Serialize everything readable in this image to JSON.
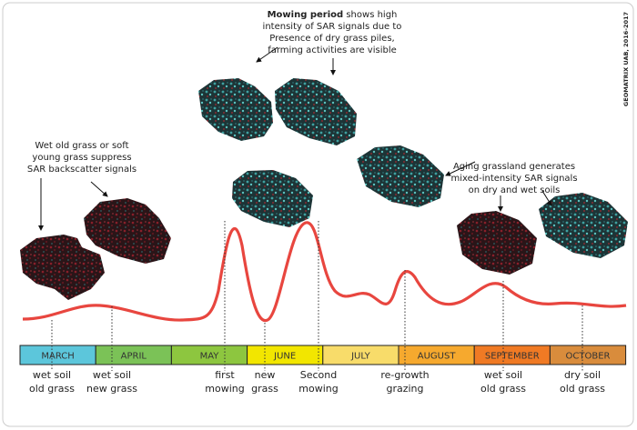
{
  "credit": "GEOMATRIX UAB, 2016-2017",
  "annotations": {
    "left": [
      "Wet old grass or soft",
      "young grass suppress",
      "SAR backscatter signals"
    ],
    "mowing": {
      "bold": "Mowing period",
      "first": " shows high",
      "lines": [
        "intensity of SAR signals due to",
        "Presence of dry grass piles,",
        "farming activities are visible"
      ]
    },
    "aging": [
      "Aging grassland generates",
      "mixed-intensity SAR signals",
      "on dry and wet soils"
    ]
  },
  "months": [
    {
      "label": "MARCH",
      "color": "#5cc6db"
    },
    {
      "label": "APRIL",
      "color": "#7bc257"
    },
    {
      "label": "MAY",
      "color": "#8dc63f"
    },
    {
      "label": "JUNE",
      "color": "#f2e600"
    },
    {
      "label": "JULY",
      "color": "#f8dc6a"
    },
    {
      "label": "AUGUST",
      "color": "#f6a92e"
    },
    {
      "label": "SEPTEMBER",
      "color": "#f07a24"
    },
    {
      "label": "OCTOBER",
      "color": "#d98c3c"
    }
  ],
  "stages": [
    [
      "wet soil",
      "old grass"
    ],
    [
      "wet soil",
      "new grass"
    ],
    [
      "first",
      "mowing"
    ],
    [
      "new",
      "grass"
    ],
    [
      "Second",
      "mowing"
    ],
    [
      "re-growth",
      "grazing"
    ],
    [
      "wet soil",
      "old grass"
    ],
    [
      "dry soil",
      "old grass"
    ]
  ]
}
